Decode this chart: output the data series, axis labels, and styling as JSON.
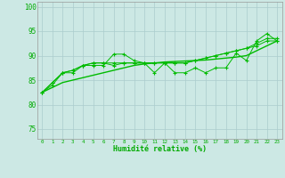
{
  "xlabel": "Humidité relative (%)",
  "bg_color": "#cce8e4",
  "grid_color": "#aacccc",
  "line_color": "#00bb00",
  "text_color": "#00aa00",
  "xlim": [
    -0.5,
    23.5
  ],
  "ylim": [
    73,
    101
  ],
  "yticks": [
    75,
    80,
    85,
    90,
    95,
    100
  ],
  "xticks": [
    0,
    1,
    2,
    3,
    4,
    5,
    6,
    7,
    8,
    9,
    10,
    11,
    12,
    13,
    14,
    15,
    16,
    17,
    18,
    19,
    20,
    21,
    22,
    23
  ],
  "series1": [
    82.5,
    84,
    86.5,
    86.5,
    88,
    88,
    88,
    90.3,
    90.3,
    89,
    88.5,
    86.5,
    88.5,
    86.5,
    86.5,
    87.5,
    86.5,
    87.5,
    87.5,
    90.5,
    89,
    93,
    94.5,
    93
  ],
  "series2": [
    82.5,
    84.5,
    86.5,
    87,
    88,
    88.5,
    88.5,
    88.0,
    88.5,
    88.5,
    88.5,
    88.5,
    88.5,
    88.5,
    88.5,
    89,
    89.5,
    90,
    90.5,
    91,
    91.5,
    92,
    93,
    93
  ],
  "series3": [
    82.5,
    84.5,
    86.5,
    87,
    88,
    88.5,
    88.5,
    88.5,
    88.5,
    88.5,
    88.5,
    88.5,
    88.5,
    88.5,
    88.5,
    89,
    89.5,
    90,
    90.5,
    91,
    91.5,
    92.5,
    93.5,
    93.5
  ],
  "series_trend": [
    82.5,
    83.5,
    84.5,
    85.0,
    85.5,
    86.0,
    86.5,
    87.0,
    87.5,
    88.0,
    88.3,
    88.5,
    88.7,
    88.8,
    88.9,
    89.0,
    89.1,
    89.3,
    89.5,
    89.7,
    90.0,
    91.0,
    92.0,
    93.0
  ]
}
